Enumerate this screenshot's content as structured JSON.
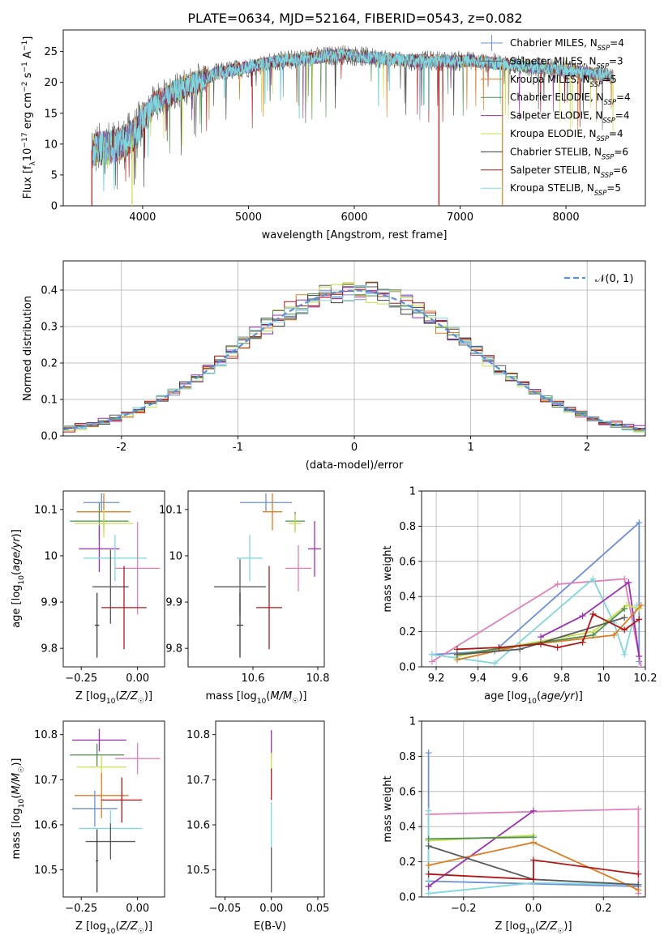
{
  "figure_title": "PLATE=0634, MJD=52164, FIBERID=0543, z=0.082",
  "colors": {
    "chabrier_miles": "#6f8fd8",
    "salpeter_miles": "#5a5a5a",
    "kroupa_miles": "#e07b20",
    "chabrier_elodie": "#4f8f4f",
    "salpeter_elodie": "#9b2fb0",
    "kroupa_elodie": "#c8e050",
    "chabrier_stelib": "#3a3a3a",
    "salpeter_stelib": "#b01818",
    "kroupa_stelib": "#80d8dc",
    "pink": "#e080b8",
    "grid": "#b0b0b0",
    "gaussian": "#5b8fd8"
  },
  "chart_data": [
    {
      "id": "spectrum",
      "type": "line",
      "title": "PLATE=0634, MJD=52164, FIBERID=0543, z=0.082",
      "xlabel": "wavelength [Angstrom, rest frame]",
      "ylabel": "Flux [f_λ 10^-17 erg cm^-2 s^-1 A^-1]",
      "xlim": [
        3250,
        8750
      ],
      "ylim": [
        0,
        28.5
      ],
      "xticks": [
        4000,
        5000,
        6000,
        7000,
        8000
      ],
      "yticks": [
        0,
        5,
        10,
        15,
        20,
        25
      ],
      "grid": false,
      "legend_position": "top-right",
      "legend": [
        {
          "label": "Chabrier MILES, N",
          "sub": "SSP",
          "eq": "=4",
          "color": "chabrier_miles",
          "marker": true
        },
        {
          "label": "Salpeter MILES, N",
          "sub": "SSP",
          "eq": "=3",
          "color": "salpeter_miles"
        },
        {
          "label": "Kroupa MILES, N",
          "sub": "SSP",
          "eq": "=5",
          "color": "kroupa_miles"
        },
        {
          "label": "Chabrier ELODIE, N",
          "sub": "SSP",
          "eq": "=4",
          "color": "chabrier_elodie"
        },
        {
          "label": "Salpeter ELODIE, N",
          "sub": "SSP",
          "eq": "=4",
          "color": "salpeter_elodie"
        },
        {
          "label": "Kroupa ELODIE, N",
          "sub": "SSP",
          "eq": "=4",
          "color": "kroupa_elodie"
        },
        {
          "label": "Chabrier STELIB, N",
          "sub": "SSP",
          "eq": "=6",
          "color": "chabrier_stelib"
        },
        {
          "label": "Salpeter STELIB, N",
          "sub": "SSP",
          "eq": "=6",
          "color": "salpeter_stelib"
        },
        {
          "label": "Kroupa STELIB, N",
          "sub": "SSP",
          "eq": "=5",
          "color": "kroupa_stelib"
        }
      ],
      "continuum": [
        [
          3520,
          9
        ],
        [
          3700,
          9.5
        ],
        [
          3850,
          10.5
        ],
        [
          3950,
          12
        ],
        [
          4000,
          14
        ],
        [
          4100,
          16.5
        ],
        [
          4300,
          18.5
        ],
        [
          4500,
          20
        ],
        [
          4700,
          21.5
        ],
        [
          5000,
          22.5
        ],
        [
          5300,
          23.5
        ],
        [
          5600,
          24
        ],
        [
          5900,
          24.5
        ],
        [
          6200,
          24
        ],
        [
          6500,
          23.5
        ],
        [
          6800,
          23.5
        ],
        [
          7100,
          23.5
        ],
        [
          7400,
          23
        ],
        [
          7700,
          22.5
        ],
        [
          8000,
          22
        ],
        [
          8300,
          21.3
        ],
        [
          8450,
          21
        ]
      ],
      "spectrum_range": [
        3520,
        8450
      ],
      "cutoffs": [
        {
          "series": "salpeter_stelib",
          "x": 3520,
          "from": 0
        },
        {
          "series": "kroupa_elodie",
          "x": 3900,
          "from": 0
        },
        {
          "series": "kroupa_miles",
          "x": 6800,
          "from": 0
        },
        {
          "series": "salpeter_stelib",
          "x": 6800,
          "from": 0
        },
        {
          "series": "kroupa_miles",
          "x": 7400,
          "from": 0
        }
      ]
    },
    {
      "id": "residuals",
      "type": "area",
      "xlabel": "(data-model)/error",
      "ylabel": "Normed distribution",
      "xlim": [
        -2.5,
        2.5
      ],
      "ylim": [
        0,
        0.48
      ],
      "xticks": [
        -2,
        -1,
        0,
        1,
        2
      ],
      "yticks": [
        0.0,
        0.1,
        0.2,
        0.3,
        0.4
      ],
      "grid": true,
      "legend_position": "top-right",
      "legend": [
        {
          "label": "𝒩(0, 1)",
          "color": "gaussian",
          "dashed": true
        }
      ],
      "bin_width": 0.1,
      "series": [
        "chabrier_miles",
        "salpeter_miles",
        "kroupa_miles",
        "chabrier_elodie",
        "salpeter_elodie",
        "kroupa_elodie",
        "chabrier_stelib",
        "salpeter_stelib",
        "kroupa_stelib"
      ]
    },
    {
      "id": "z_age",
      "type": "scatter",
      "xlabel": "Z [log₁₀(Z/Z☉)]",
      "ylabel": "age  [log₁₀(age/yr)]",
      "xlim": [
        -0.33,
        0.12
      ],
      "ylim": [
        9.76,
        10.14
      ],
      "xticks": [
        -0.25,
        0.0
      ],
      "xticklabels": [
        "−0.25",
        "0.00"
      ],
      "yticks": [
        9.8,
        9.9,
        10.0,
        10.1
      ],
      "grid": false,
      "points": [
        {
          "x": -0.16,
          "y": 10.115,
          "xe": 0.08,
          "ye": 0.02,
          "color": "chabrier_miles"
        },
        {
          "x": -0.15,
          "y": 10.095,
          "xe": 0.12,
          "ye": 0.04,
          "color": "kroupa_miles"
        },
        {
          "x": -0.17,
          "y": 10.075,
          "xe": 0.13,
          "ye": 0.04,
          "color": "chabrier_elodie"
        },
        {
          "x": -0.15,
          "y": 10.07,
          "xe": 0.13,
          "ye": 0.03,
          "color": "kroupa_elodie"
        },
        {
          "x": -0.17,
          "y": 10.015,
          "xe": 0.09,
          "ye": 0.05,
          "color": "salpeter_elodie"
        },
        {
          "x": -0.1,
          "y": 9.995,
          "xe": 0.14,
          "ye": 0.05,
          "color": "kroupa_stelib"
        },
        {
          "x": 0.0,
          "y": 9.973,
          "xe": 0.1,
          "ye": 0.1,
          "color": "pink"
        },
        {
          "x": -0.12,
          "y": 9.933,
          "xe": 0.08,
          "ye": 0.08,
          "color": "salpeter_miles"
        },
        {
          "x": -0.06,
          "y": 9.888,
          "xe": 0.1,
          "ye": 0.09,
          "color": "salpeter_stelib"
        },
        {
          "x": -0.18,
          "y": 9.85,
          "xe": 0.01,
          "ye": 0.07,
          "color": "chabrier_stelib"
        }
      ]
    },
    {
      "id": "mass_age",
      "type": "scatter",
      "xlabel": "mass [log₁₀(M/M☉)]",
      "ylabel": "",
      "xlim": [
        10.4,
        10.82
      ],
      "ylim": [
        9.76,
        10.14
      ],
      "xticks": [
        10.6,
        10.8
      ],
      "yticks": [
        9.8,
        9.9,
        10.0,
        10.1
      ],
      "grid": false,
      "points": [
        {
          "x": 10.64,
          "y": 10.115,
          "xe": 0.08,
          "ye": 0.02,
          "color": "chabrier_miles"
        },
        {
          "x": 10.66,
          "y": 10.095,
          "xe": 0.03,
          "ye": 0.04,
          "color": "kroupa_miles"
        },
        {
          "x": 10.73,
          "y": 10.075,
          "xe": 0.03,
          "ye": 0.02,
          "color": "chabrier_elodie"
        },
        {
          "x": 10.73,
          "y": 10.07,
          "xe": 0.02,
          "ye": 0.02,
          "color": "kroupa_elodie"
        },
        {
          "x": 10.79,
          "y": 10.015,
          "xe": 0.02,
          "ye": 0.06,
          "color": "salpeter_elodie"
        },
        {
          "x": 10.59,
          "y": 9.995,
          "xe": 0.04,
          "ye": 0.05,
          "color": "kroupa_stelib"
        },
        {
          "x": 10.74,
          "y": 9.973,
          "xe": 0.04,
          "ye": 0.05,
          "color": "pink"
        },
        {
          "x": 10.56,
          "y": 9.933,
          "xe": 0.08,
          "ye": 0.06,
          "color": "salpeter_miles"
        },
        {
          "x": 10.65,
          "y": 9.888,
          "xe": 0.04,
          "ye": 0.09,
          "color": "salpeter_stelib"
        },
        {
          "x": 10.56,
          "y": 9.85,
          "xe": 0.01,
          "ye": 0.07,
          "color": "chabrier_stelib"
        }
      ]
    },
    {
      "id": "age_weight",
      "type": "line",
      "xlabel": "age  [log₁₀(age/yr)]",
      "ylabel": "mass weight",
      "xlim": [
        9.13,
        10.2
      ],
      "ylim": [
        0,
        1
      ],
      "xticks": [
        9.2,
        9.4,
        9.6,
        9.8,
        10.0,
        10.2
      ],
      "yticks": [
        0.0,
        0.2,
        0.4,
        0.6,
        0.8,
        1.0
      ],
      "grid": true,
      "series": [
        {
          "color": "chabrier_miles",
          "points": [
            [
              9.18,
              0.07
            ],
            [
              9.48,
              0.09
            ],
            [
              10.17,
              0.82
            ],
            [
              10.17,
              0.03
            ]
          ]
        },
        {
          "color": "pink",
          "points": [
            [
              9.18,
              0.03
            ],
            [
              9.78,
              0.47
            ],
            [
              10.1,
              0.5
            ],
            [
              10.18,
              0.0
            ]
          ]
        },
        {
          "color": "kroupa_stelib",
          "points": [
            [
              9.18,
              0.07
            ],
            [
              9.48,
              0.02
            ],
            [
              9.95,
              0.5
            ],
            [
              10.05,
              0.25
            ],
            [
              10.1,
              0.07
            ],
            [
              10.16,
              0.35
            ]
          ]
        },
        {
          "color": "salpeter_elodie",
          "points": [
            [
              9.7,
              0.17
            ],
            [
              9.9,
              0.29
            ],
            [
              10.12,
              0.48
            ],
            [
              10.17,
              0.06
            ]
          ]
        },
        {
          "color": "kroupa_elodie",
          "points": [
            [
              9.3,
              0.06
            ],
            [
              9.95,
              0.2
            ],
            [
              10.11,
              0.35
            ],
            [
              10.17,
              0.33
            ]
          ]
        },
        {
          "color": "kroupa_miles",
          "points": [
            [
              9.3,
              0.04
            ],
            [
              9.6,
              0.12
            ],
            [
              10.05,
              0.18
            ],
            [
              10.18,
              0.35
            ]
          ]
        },
        {
          "color": "chabrier_elodie",
          "points": [
            [
              9.3,
              0.07
            ],
            [
              9.95,
              0.18
            ],
            [
              10.1,
              0.33
            ]
          ]
        },
        {
          "color": "salpeter_miles",
          "points": [
            [
              9.3,
              0.07
            ],
            [
              9.6,
              0.1
            ],
            [
              10.1,
              0.28
            ]
          ]
        },
        {
          "color": "salpeter_stelib",
          "points": [
            [
              9.3,
              0.1
            ],
            [
              9.5,
              0.11
            ],
            [
              9.7,
              0.13
            ],
            [
              9.78,
              0.11
            ],
            [
              9.9,
              0.14
            ],
            [
              9.95,
              0.3
            ],
            [
              10.1,
              0.21
            ],
            [
              10.17,
              0.27
            ]
          ]
        }
      ]
    },
    {
      "id": "z_mass",
      "type": "scatter",
      "xlabel": "Z [log₁₀(Z/Z☉)]",
      "ylabel": "mass [log₁₀(M/M☉)]",
      "xlim": [
        -0.33,
        0.12
      ],
      "ylim": [
        10.44,
        10.83
      ],
      "xticks": [
        -0.25,
        0.0
      ],
      "xticklabels": [
        "−0.25",
        "0.00"
      ],
      "yticks": [
        10.5,
        10.6,
        10.7,
        10.8
      ],
      "grid": false,
      "points": [
        {
          "x": -0.17,
          "y": 10.788,
          "xe": 0.12,
          "ye": 0.025,
          "color": "salpeter_elodie"
        },
        {
          "x": -0.18,
          "y": 10.755,
          "xe": 0.12,
          "ye": 0.025,
          "color": "chabrier_elodie"
        },
        {
          "x": 0.0,
          "y": 10.747,
          "xe": 0.1,
          "ye": 0.035,
          "color": "pink"
        },
        {
          "x": -0.16,
          "y": 10.728,
          "xe": 0.11,
          "ye": 0.025,
          "color": "kroupa_elodie"
        },
        {
          "x": -0.16,
          "y": 10.665,
          "xe": 0.12,
          "ye": 0.05,
          "color": "kroupa_miles"
        },
        {
          "x": -0.07,
          "y": 10.655,
          "xe": 0.09,
          "ye": 0.05,
          "color": "salpeter_stelib"
        },
        {
          "x": -0.19,
          "y": 10.636,
          "xe": 0.1,
          "ye": 0.04,
          "color": "chabrier_miles"
        },
        {
          "x": -0.12,
          "y": 10.592,
          "xe": 0.14,
          "ye": 0.04,
          "color": "kroupa_stelib"
        },
        {
          "x": -0.12,
          "y": 10.563,
          "xe": 0.11,
          "ye": 0.04,
          "color": "salpeter_miles"
        },
        {
          "x": -0.18,
          "y": 10.52,
          "xe": 0.005,
          "ye": 0.07,
          "color": "chabrier_stelib"
        }
      ]
    },
    {
      "id": "ebv_mass",
      "type": "scatter",
      "xlabel": "E(B-V)",
      "ylabel": "",
      "xlim": [
        -0.06,
        0.057
      ],
      "ylim": [
        10.44,
        10.83
      ],
      "xticks": [
        -0.05,
        0.0,
        0.05
      ],
      "xticklabels": [
        "−0.05",
        "0.00",
        "0.05"
      ],
      "yticks": [
        10.5,
        10.6,
        10.7,
        10.8
      ],
      "grid": false,
      "points": [
        {
          "x": 0.0,
          "y": 10.78,
          "xe": 0.0,
          "ye": 0.03,
          "color": "salpeter_elodie"
        },
        {
          "x": 0.0,
          "y": 10.74,
          "xe": 0.0,
          "ye": 0.02,
          "color": "kroupa_elodie"
        },
        {
          "x": 0.0,
          "y": 10.69,
          "xe": 0.0,
          "ye": 0.035,
          "color": "salpeter_stelib"
        },
        {
          "x": 0.0,
          "y": 10.6,
          "xe": 0.0,
          "ye": 0.05,
          "color": "kroupa_stelib"
        },
        {
          "x": 0.0,
          "y": 10.5,
          "xe": 0.0,
          "ye": 0.05,
          "color": "salpeter_miles"
        }
      ]
    },
    {
      "id": "z_weight",
      "type": "line",
      "xlabel": "Z [log₁₀(Z/Z☉)]",
      "ylabel": "mass weight",
      "xlim": [
        -0.32,
        0.32
      ],
      "ylim": [
        0,
        1
      ],
      "xticks": [
        -0.2,
        0.0,
        0.2
      ],
      "xticklabels": [
        "−0.2",
        "0.0",
        "0.2"
      ],
      "yticks": [
        0.0,
        0.2,
        0.4,
        0.6,
        0.8,
        1.0
      ],
      "grid": true,
      "series": [
        {
          "color": "chabrier_miles",
          "points": [
            [
              -0.3,
              0.82
            ],
            [
              -0.3,
              0.09
            ],
            [
              0.3,
              0.06
            ]
          ]
        },
        {
          "color": "pink",
          "points": [
            [
              -0.3,
              0.47
            ],
            [
              0.3,
              0.5
            ],
            [
              0.3,
              0.02
            ]
          ]
        },
        {
          "color": "kroupa_stelib",
          "points": [
            [
              -0.3,
              0.49
            ],
            [
              -0.3,
              0.02
            ],
            [
              0.0,
              0.08
            ],
            [
              0.3,
              0.07
            ]
          ]
        },
        {
          "color": "salpeter_elodie",
          "points": [
            [
              -0.3,
              0.06
            ],
            [
              0.0,
              0.49
            ]
          ]
        },
        {
          "color": "kroupa_elodie",
          "points": [
            [
              -0.3,
              0.32
            ],
            [
              0.0,
              0.35
            ]
          ]
        },
        {
          "color": "chabrier_elodie",
          "points": [
            [
              -0.3,
              0.33
            ],
            [
              0.0,
              0.34
            ]
          ]
        },
        {
          "color": "kroupa_miles",
          "points": [
            [
              -0.3,
              0.18
            ],
            [
              0.0,
              0.31
            ],
            [
              0.3,
              0.04
            ]
          ]
        },
        {
          "color": "salpeter_miles",
          "points": [
            [
              -0.3,
              0.29
            ],
            [
              0.0,
              0.1
            ],
            [
              0.3,
              0.07
            ]
          ]
        },
        {
          "color": "salpeter_stelib",
          "points": [
            [
              -0.3,
              0.13
            ],
            [
              0.0,
              0.1
            ],
            [
              0.0,
              0.21
            ],
            [
              0.3,
              0.13
            ]
          ]
        }
      ]
    }
  ]
}
